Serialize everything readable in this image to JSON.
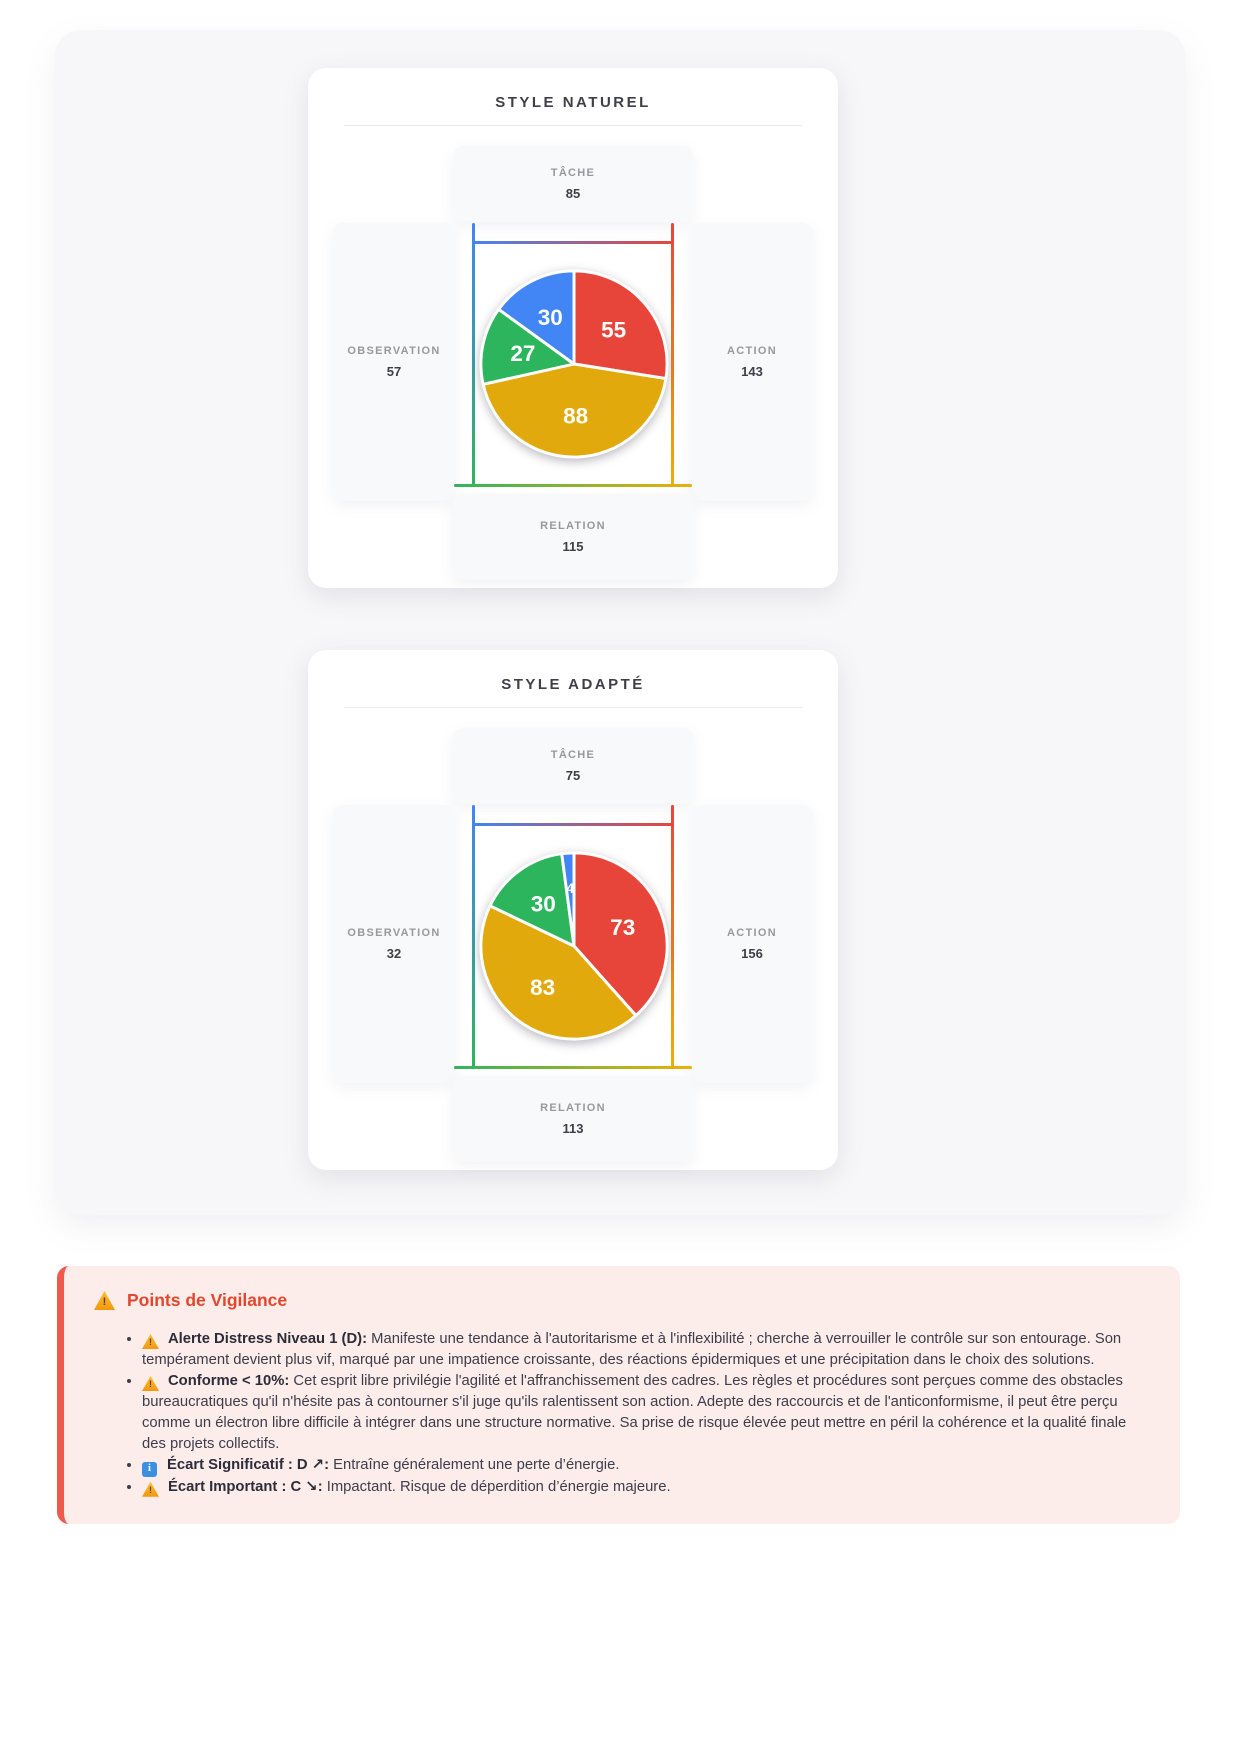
{
  "chart_data": [
    {
      "type": "pie",
      "title": "STYLE NATUREL",
      "values": [
        55,
        88,
        27,
        30
      ],
      "segment_labels": [
        "55",
        "88",
        "27",
        "30"
      ],
      "colors": [
        "#e8453a",
        "#e2a90c",
        "#2db55d",
        "#4285f4"
      ],
      "start_angle_deg": 0,
      "direction": "clockwise",
      "legend_position": "none",
      "axis_labels": {
        "top": {
          "label": "TÂCHE",
          "value": "85"
        },
        "right": {
          "label": "ACTION",
          "value": "143"
        },
        "bottom": {
          "label": "RELATION",
          "value": "115"
        },
        "left": {
          "label": "OBSERVATION",
          "value": "57"
        }
      }
    },
    {
      "type": "pie",
      "title": "STYLE ADAPTÉ",
      "values": [
        73,
        83,
        30,
        4
      ],
      "segment_labels": [
        "73",
        "83",
        "30",
        "4"
      ],
      "colors": [
        "#e8453a",
        "#e2a90c",
        "#2db55d",
        "#4285f4"
      ],
      "start_angle_deg": 0,
      "direction": "clockwise",
      "legend_position": "none",
      "axis_labels": {
        "top": {
          "label": "TÂCHE",
          "value": "75"
        },
        "right": {
          "label": "ACTION",
          "value": "156"
        },
        "bottom": {
          "label": "RELATION",
          "value": "113"
        },
        "left": {
          "label": "OBSERVATION",
          "value": "32"
        }
      }
    }
  ],
  "icons": {
    "warning_glyph": "!",
    "info_glyph": "i"
  },
  "vigilance": {
    "title": "Points de Vigilance",
    "items": [
      {
        "icon": "warning",
        "label": "Alerte Distress Niveau 1 (D):",
        "text": "Manifeste une tendance à l'autoritarisme et à l'inflexibilité ; cherche à verrouiller le contrôle sur son entourage. Son tempérament devient plus vif, marqué par une impatience croissante, des réactions épidermiques et une précipitation dans le choix des solutions."
      },
      {
        "icon": "warning",
        "label": "Conforme < 10%:",
        "text": "Cet esprit libre privilégie l'agilité et l'affranchissement des cadres. Les règles et procédures sont perçues comme des obstacles bureaucratiques qu'il n'hésite pas à contourner s'il juge qu'ils ralentissent son action. Adepte des raccourcis et de l'anticonformisme, il peut être perçu comme un électron libre difficile à intégrer dans une structure normative. Sa prise de risque élevée peut mettre en péril la cohérence et la qualité finale des projets collectifs."
      },
      {
        "icon": "info",
        "label": "Écart Significatif : D ↗:",
        "text": "Entraîne généralement une perte d’énergie."
      },
      {
        "icon": "warning",
        "label": "Écart Important : C ↘:",
        "text": "Impactant. Risque de déperdition d’énergie majeure."
      }
    ]
  }
}
